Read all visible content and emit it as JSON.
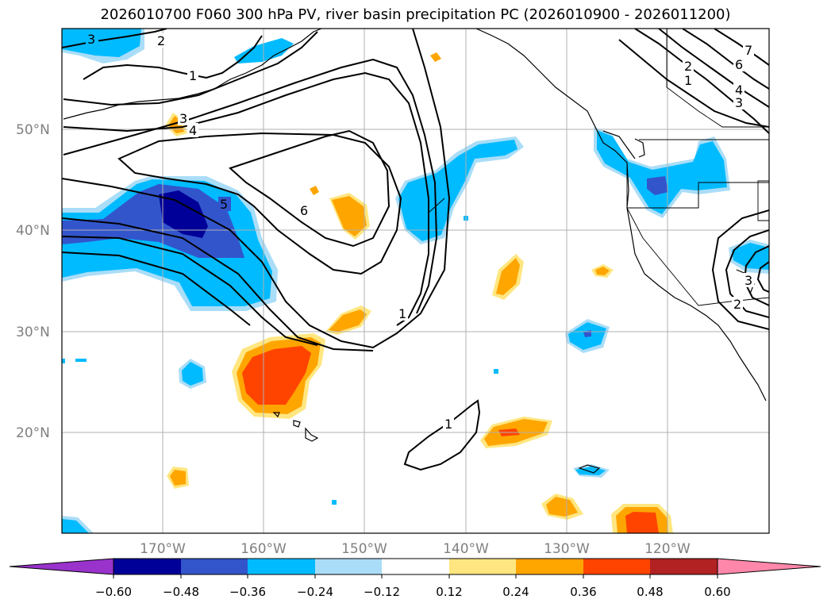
{
  "title": "2026010700 F060 300 hPa PV, river basin precipitation PC (2026010900 - 2026011200)",
  "lat_labels": [
    "50°N",
    "40°N",
    "30°N",
    "20°N"
  ],
  "lon_labels": [
    "170°W",
    "160°W",
    "150°W",
    "140°W",
    "130°W",
    "120°W"
  ],
  "pv_contour_labels": [
    "3",
    "2",
    "1",
    "3",
    "4",
    "5",
    "6",
    "1",
    "1",
    "7",
    "6",
    "2",
    "1",
    "4",
    "3",
    "3",
    "2"
  ],
  "colorbar": {
    "tick_labels": [
      "−0.60",
      "−0.48",
      "−0.36",
      "−0.24",
      "−0.12",
      "0.12",
      "0.24",
      "0.36",
      "0.48",
      "0.60"
    ],
    "colors": [
      "#9933cc",
      "#000099",
      "#3355cc",
      "#00bbff",
      "#aaddf7",
      "#ffffff",
      "#ffe680",
      "#ffa500",
      "#ff4400",
      "#b22222",
      "#ff88aa"
    ]
  }
}
